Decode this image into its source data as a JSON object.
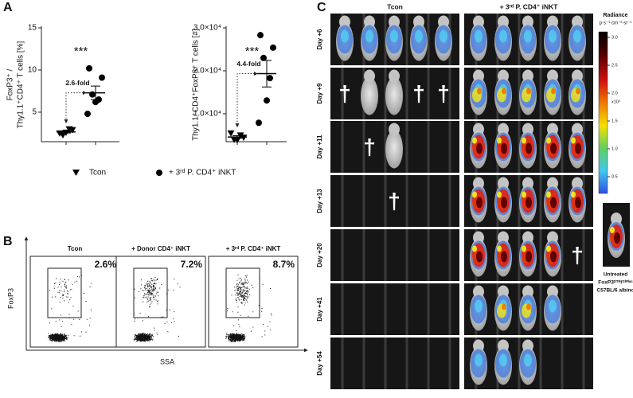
{
  "panel_a": {
    "label": "A"
  },
  "chart_data": [
    {
      "type": "dot",
      "ylabel": [
        "FoxP3⁺ /",
        "Thy1.1⁺CD4⁺ T cells [%]"
      ],
      "ylim": [
        1.5,
        15
      ],
      "yticks": [
        5,
        10,
        15
      ],
      "significance": "***",
      "fold_change": "2.6-fold",
      "series": [
        {
          "name": "Tcon",
          "color": "#000000",
          "marker": "triangle-down",
          "values": [
            2.5,
            2.9,
            2.3,
            3.0,
            2.6
          ],
          "mean": 2.66,
          "sem": 0.13
        },
        {
          "name": "+ 3ʳᵈ P. CD4⁺ iNKT",
          "color": "#000000",
          "marker": "circle",
          "values": [
            10.2,
            9.1,
            7.1,
            6.5,
            6.2,
            4.8
          ],
          "mean": 7.3,
          "sem": 0.8
        }
      ]
    },
    {
      "type": "dot",
      "ylabel": "Thy1.1⁺CD4⁺FoxP3⁺ T cells [#]",
      "ylim": [
        3500,
        30000
      ],
      "yticks": [
        {
          "value": 10000,
          "label": "1.0×10⁴"
        },
        {
          "value": 20000,
          "label": "2.0×10⁴"
        },
        {
          "value": 30000,
          "label": "3.0×10⁴"
        }
      ],
      "significance": "***",
      "fold_change": "4.4-fold",
      "series": [
        {
          "color": "#000000",
          "marker": "triangle-down",
          "values": [
            5500,
            4500,
            4000,
            5000,
            3900
          ],
          "mean": 4580,
          "sem": 300
        },
        {
          "color": "#000000",
          "marker": "circle",
          "values": [
            28300,
            25400,
            23000,
            18300,
            13100,
            7900
          ],
          "mean": 19333,
          "sem": 3100
        }
      ]
    }
  ],
  "panel_b": {
    "label": "B",
    "y_axis_label": "FoxP3",
    "x_axis_label": "SSA",
    "plots": [
      {
        "title": "Tcon",
        "percent": "2.6%"
      },
      {
        "title": "+ Donor CD4⁺ iNKT",
        "percent": "7.2%"
      },
      {
        "title": "+ 3ʳᵈ P. CD4⁺ iNKT",
        "percent": "8.7%"
      }
    ]
  },
  "panel_c": {
    "label": "C",
    "columns": [
      "Tcon",
      "+ 3ʳᵈ P. CD4⁺ iNKT"
    ],
    "rows": [
      "Day +6",
      "Day +9",
      "Day +11",
      "Day +13",
      "Day +20",
      "Day +41",
      "Day +54"
    ],
    "cross": "†",
    "colorbar": {
      "title": "Radiance",
      "unit": "p·s⁻¹·cm⁻²·sr⁻¹",
      "multiplier": "x10⁵",
      "lim": [
        0.2,
        3.1
      ],
      "ticks": [
        {
          "value": 3,
          "label": "3.0"
        },
        {
          "value": 2.5,
          "label": "2.5"
        },
        {
          "value": 2,
          "label": "2.0"
        },
        {
          "value": 1.5,
          "label": "1.5"
        },
        {
          "value": 1,
          "label": "1.0"
        },
        {
          "value": 0.5,
          "label": "0.5"
        }
      ]
    },
    "inset_caption": [
      "Untreated",
      "FoxP3ᴰᵀᴿ/ᴳᶠᴾˡᵘᶜ",
      "C57BL/6 albino"
    ]
  }
}
